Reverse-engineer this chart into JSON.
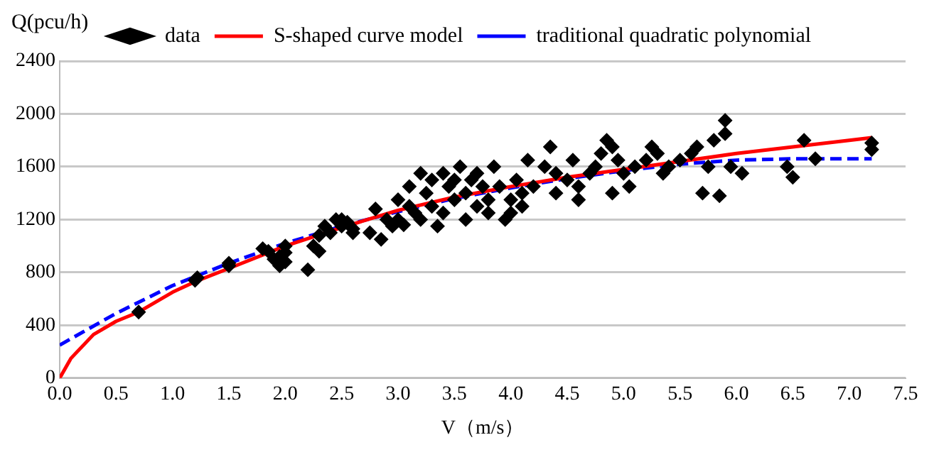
{
  "chart_data": {
    "type": "scatter",
    "xlabel": "V（m/s）",
    "ylabel": "Q(pcu/h)",
    "xlim": [
      0,
      7.5
    ],
    "xticks": [
      {
        "value": 0,
        "label": "0.0"
      },
      {
        "value": 0.5,
        "label": "0.5"
      },
      {
        "value": 1,
        "label": "1.0"
      },
      {
        "value": 1.5,
        "label": "1.5"
      },
      {
        "value": 2,
        "label": "2.0"
      },
      {
        "value": 2.5,
        "label": "2.5"
      },
      {
        "value": 3,
        "label": "3.0"
      },
      {
        "value": 3.5,
        "label": "3.5"
      },
      {
        "value": 4,
        "label": "4.0"
      },
      {
        "value": 4.5,
        "label": "4.5"
      },
      {
        "value": 5,
        "label": "5.0"
      },
      {
        "value": 5.5,
        "label": "5.5"
      },
      {
        "value": 6,
        "label": "6.0"
      },
      {
        "value": 6.5,
        "label": "6.5"
      },
      {
        "value": 7,
        "label": "7.0"
      },
      {
        "value": 7.5,
        "label": "7.5"
      }
    ],
    "ylim": [
      0,
      2400
    ],
    "yticks": [
      0,
      400,
      800,
      1200,
      1600,
      2000,
      2400
    ],
    "grid": "y",
    "legend": "top",
    "series": [
      {
        "name": "data",
        "marker": "diamond",
        "color": "#000000",
        "x": [
          0.7,
          1.2,
          1.22,
          1.5,
          1.5,
          1.8,
          1.85,
          1.9,
          1.95,
          2.0,
          1.95,
          2.0,
          2.0,
          2.2,
          2.25,
          2.3,
          2.3,
          2.35,
          2.4,
          2.45,
          2.5,
          2.5,
          2.55,
          2.6,
          2.6,
          2.75,
          2.8,
          2.85,
          2.9,
          2.95,
          3.0,
          3.0,
          3.05,
          3.1,
          3.1,
          3.15,
          3.2,
          3.2,
          3.25,
          3.3,
          3.3,
          3.35,
          3.4,
          3.4,
          3.45,
          3.5,
          3.5,
          3.55,
          3.6,
          3.6,
          3.65,
          3.7,
          3.7,
          3.75,
          3.8,
          3.8,
          3.85,
          3.9,
          3.95,
          4.0,
          4.0,
          4.05,
          4.1,
          4.1,
          4.15,
          4.2,
          4.3,
          4.35,
          4.4,
          4.4,
          4.5,
          4.55,
          4.6,
          4.6,
          4.7,
          4.75,
          4.8,
          4.85,
          4.9,
          4.9,
          4.95,
          5.0,
          5.05,
          5.1,
          5.2,
          5.25,
          5.3,
          5.35,
          5.4,
          5.5,
          5.6,
          5.65,
          5.7,
          5.75,
          5.8,
          5.85,
          5.9,
          5.9,
          5.95,
          6.05,
          6.45,
          6.5,
          6.6,
          6.7,
          7.2,
          7.2
        ],
        "values": [
          500,
          740,
          760,
          850,
          870,
          980,
          960,
          900,
          850,
          880,
          920,
          950,
          1000,
          820,
          1000,
          960,
          1080,
          1150,
          1100,
          1200,
          1150,
          1200,
          1180,
          1100,
          1130,
          1100,
          1280,
          1050,
          1200,
          1150,
          1200,
          1350,
          1160,
          1300,
          1450,
          1250,
          1200,
          1550,
          1400,
          1500,
          1300,
          1150,
          1250,
          1550,
          1450,
          1350,
          1500,
          1600,
          1200,
          1400,
          1500,
          1300,
          1550,
          1450,
          1350,
          1250,
          1600,
          1450,
          1200,
          1250,
          1350,
          1500,
          1300,
          1400,
          1650,
          1450,
          1600,
          1750,
          1400,
          1550,
          1500,
          1650,
          1350,
          1450,
          1550,
          1600,
          1700,
          1800,
          1750,
          1400,
          1650,
          1550,
          1450,
          1600,
          1650,
          1750,
          1700,
          1550,
          1600,
          1650,
          1700,
          1750,
          1400,
          1600,
          1800,
          1380,
          1950,
          1850,
          1600,
          1550,
          1600,
          1520,
          1800,
          1660,
          1730,
          1780
        ]
      },
      {
        "name": "S-shaped curve model",
        "type": "line",
        "marker": "none",
        "line_style": "solid",
        "color": "#ff0000",
        "x": [
          0,
          0.1,
          0.3,
          0.5,
          0.7,
          1.0,
          1.2,
          1.5,
          2.0,
          2.5,
          3.0,
          3.5,
          4.0,
          4.5,
          5.0,
          5.5,
          6.0,
          6.5,
          7.0,
          7.2
        ],
        "values": [
          0,
          150,
          330,
          430,
          500,
          650,
          730,
          830,
          1000,
          1140,
          1270,
          1370,
          1450,
          1520,
          1580,
          1640,
          1700,
          1750,
          1800,
          1820
        ]
      },
      {
        "name": "traditional quadratic polynomial",
        "type": "line",
        "marker": "none",
        "line_style": "dashed",
        "color": "#0000ff",
        "x": [
          0,
          0.5,
          1.0,
          1.5,
          2.0,
          2.5,
          3.0,
          3.5,
          4.0,
          4.5,
          5.0,
          5.5,
          6.0,
          6.5,
          7.0,
          7.2
        ],
        "values": [
          250,
          490,
          700,
          870,
          1020,
          1150,
          1260,
          1360,
          1440,
          1510,
          1570,
          1620,
          1650,
          1660,
          1660,
          1660
        ]
      }
    ]
  }
}
